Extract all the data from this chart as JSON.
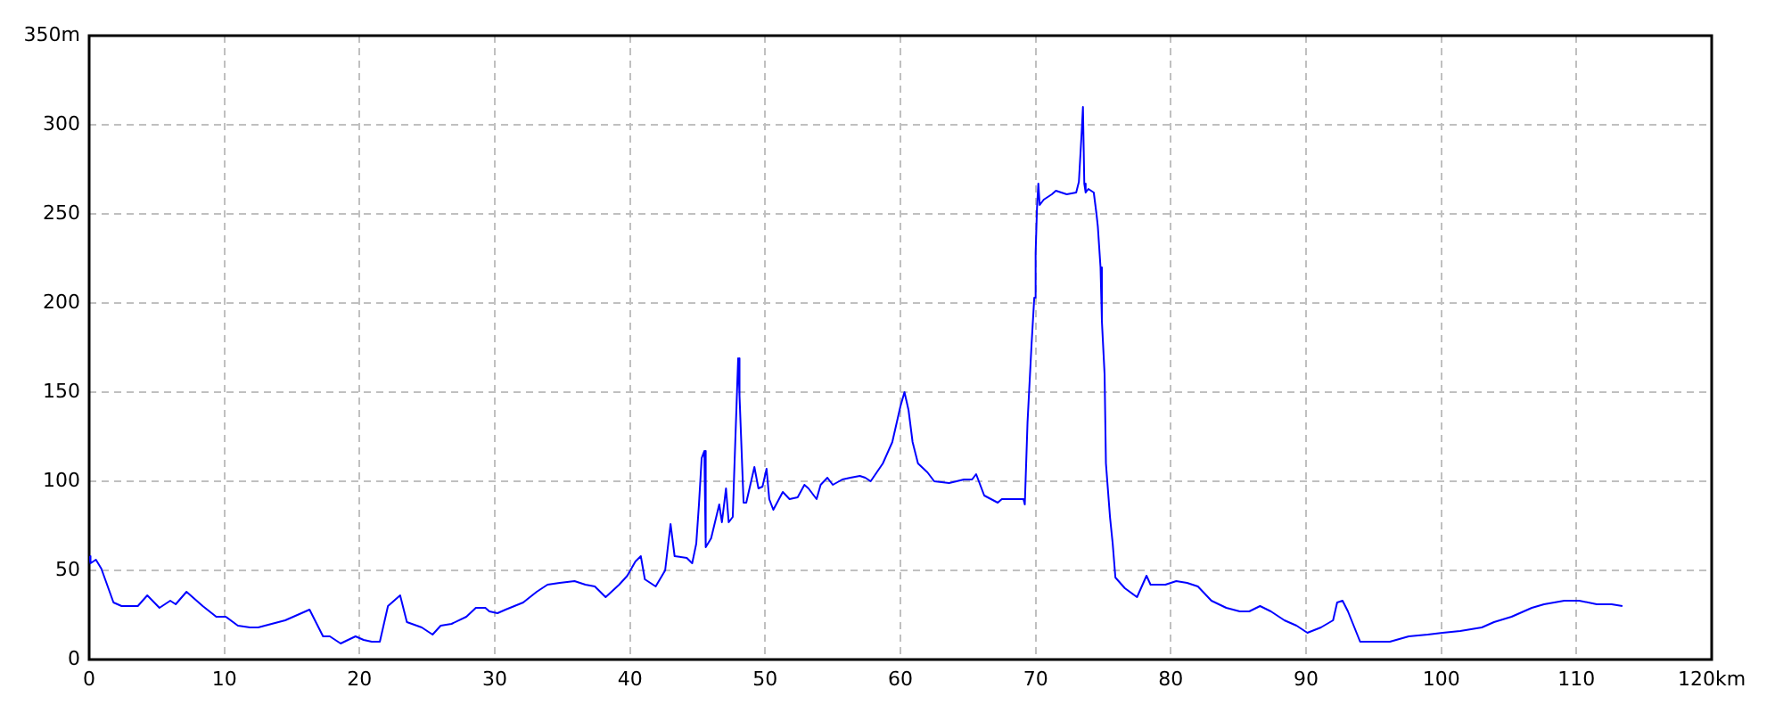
{
  "chart_data": {
    "type": "line",
    "color": "#0000ff",
    "marker": "none",
    "grid": true,
    "xlim": [
      0,
      120
    ],
    "xticks": [
      0,
      10,
      20,
      30,
      40,
      50,
      60,
      70,
      80,
      90,
      100,
      110,
      {
        "value": 120,
        "label": "120km"
      }
    ],
    "ylim": [
      0,
      350
    ],
    "yticks": [
      0,
      50,
      100,
      150,
      200,
      250,
      300,
      {
        "value": 350,
        "label": "350m"
      }
    ],
    "x": [
      0,
      0.1,
      0.5,
      0.9,
      1.8,
      2.4,
      3.6,
      4.3,
      5.2,
      6.0,
      6.4,
      7.2,
      8.4,
      9.4,
      10.1,
      11.0,
      11.9,
      12.5,
      14.5,
      15.4,
      16.3,
      17.3,
      17.8,
      18.6,
      19.7,
      20.3,
      20.9,
      21.5,
      22.1,
      23.0,
      23.5,
      24.6,
      25.4,
      26.0,
      26.8,
      27.9,
      28.6,
      29.3,
      29.6,
      30.2,
      30.8,
      32.1,
      33.1,
      33.9,
      34.8,
      35.9,
      36.7,
      37.4,
      38.2,
      39.2,
      39.8,
      40.4,
      40.8,
      41.1,
      41.9,
      42.6,
      43.0,
      43.3,
      44.2,
      44.6,
      44.9,
      45.1,
      45.3,
      45.5,
      45.6,
      46.0,
      46.6,
      46.8,
      47.1,
      47.3,
      47.6,
      47.7,
      48.0,
      48.1,
      48.3,
      48.4,
      48.6,
      49.2,
      49.5,
      49.8,
      50.1,
      50.3,
      50.6,
      51.3,
      51.8,
      52.4,
      52.9,
      53.2,
      53.8,
      54.1,
      54.6,
      55.0,
      55.7,
      56.3,
      57.0,
      57.4,
      57.8,
      58.7,
      59.4,
      60.0,
      60.3,
      60.6,
      60.9,
      61.3,
      62.0,
      62.5,
      63.6,
      64.7,
      65.3,
      65.6,
      66.2,
      67.2,
      67.5,
      69.1,
      69.2,
      69.4,
      69.7,
      69.9,
      70.0,
      70.1,
      70.2,
      70.3,
      70.6,
      71.2,
      71.5,
      71.9,
      72.3,
      73.0,
      73.2,
      73.4,
      73.5,
      73.6,
      73.7,
      73.9,
      74.3,
      74.5,
      74.6,
      74.8,
      74.9,
      75.1,
      75.2,
      75.5,
      75.7,
      75.9,
      76.6,
      77.5,
      78.2,
      78.5,
      79.6,
      80.4,
      81.2,
      82.0,
      82.5,
      83.0,
      84.1,
      85.1,
      85.8,
      86.6,
      87.4,
      88.4,
      89.3,
      90.1,
      91.1,
      92.0,
      92.3,
      92.7,
      93.1,
      94.0,
      96.2,
      97.6,
      99.0,
      100.1,
      101.4,
      103.0,
      103.9,
      105.2,
      106.1,
      106.7,
      107.6,
      109.1,
      110.2,
      111.5,
      112.6,
      113.4
    ],
    "values": [
      58,
      54,
      56,
      51,
      32,
      30,
      30,
      36,
      29,
      33,
      31,
      38,
      30,
      24,
      24,
      19,
      18,
      18,
      22,
      25,
      28,
      13,
      13,
      9,
      13,
      11,
      10,
      10,
      30,
      36,
      21,
      18,
      14,
      19,
      20,
      24,
      29,
      29,
      27,
      26,
      28,
      32,
      38,
      42,
      43,
      44,
      42,
      41,
      35,
      42,
      47,
      55,
      58,
      45,
      41,
      50,
      76,
      58,
      57,
      54,
      65,
      87,
      113,
      117,
      63,
      68,
      87,
      77,
      96,
      77,
      80,
      103,
      169,
      148,
      108,
      88,
      88,
      108,
      96,
      97,
      107,
      90,
      84,
      94,
      90,
      91,
      98,
      96,
      90,
      98,
      102,
      98,
      101,
      102,
      103,
      102,
      100,
      110,
      122,
      142,
      150,
      140,
      122,
      110,
      105,
      100,
      99,
      101,
      101,
      104,
      92,
      88,
      90,
      90,
      87,
      133,
      177,
      203,
      228,
      253,
      267,
      255,
      258,
      261,
      263,
      262,
      261,
      262,
      268,
      295,
      310,
      267,
      262,
      264,
      262,
      250,
      243,
      220,
      190,
      160,
      110,
      80,
      65,
      46,
      40,
      35,
      47,
      42,
      42,
      44,
      43,
      41,
      37,
      33,
      29,
      27,
      27,
      30,
      27,
      22,
      19,
      15,
      18,
      22,
      32,
      33,
      27,
      10,
      10,
      13,
      14,
      15,
      16,
      18,
      21,
      24,
      27,
      29,
      31,
      33,
      33,
      31,
      31,
      30
    ]
  }
}
